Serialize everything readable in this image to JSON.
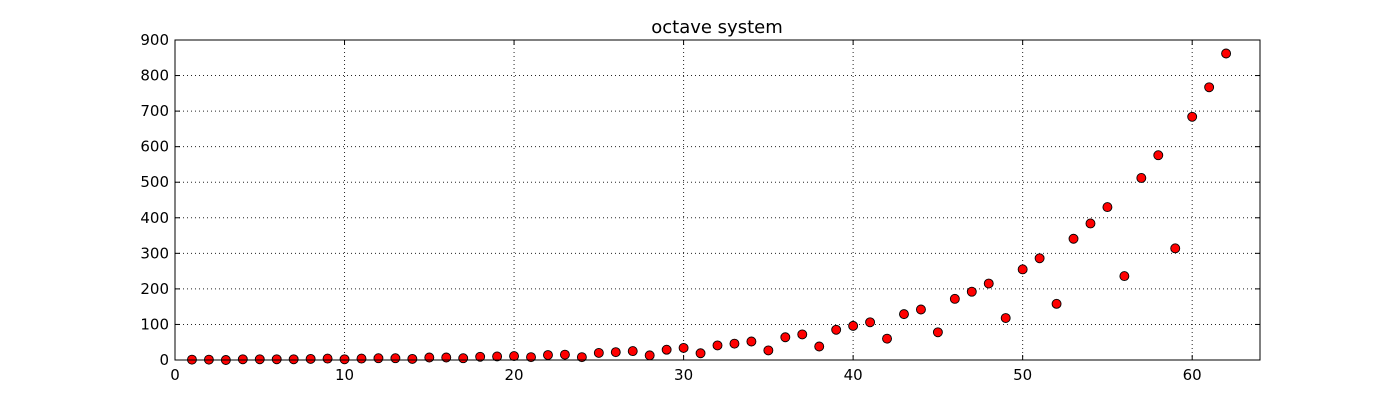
{
  "chart_data": {
    "type": "scatter",
    "title": "octave system",
    "xlabel": "",
    "ylabel": "",
    "xlim": [
      0,
      64
    ],
    "ylim": [
      0,
      900
    ],
    "xticks": [
      0,
      10,
      20,
      30,
      40,
      50,
      60
    ],
    "yticks": [
      0,
      100,
      200,
      300,
      400,
      500,
      600,
      700,
      800,
      900
    ],
    "grid": true,
    "marker_color": "#ff0000",
    "series": [
      {
        "x": [
          1,
          2,
          3,
          4,
          5,
          6,
          7,
          8,
          9,
          10,
          11,
          12,
          13,
          14,
          15,
          16,
          17,
          18,
          19,
          20,
          21,
          22,
          23,
          24,
          25,
          26,
          27,
          28,
          29,
          30,
          31,
          32,
          33,
          34,
          35,
          36,
          37,
          38,
          39,
          40,
          41,
          42,
          43,
          44,
          45,
          46,
          47,
          48,
          49,
          50,
          51,
          52,
          53,
          54,
          55,
          56,
          57,
          58,
          59,
          60,
          61,
          62
        ],
        "y": [
          1,
          1,
          0,
          2,
          2,
          2,
          2,
          3,
          4,
          2,
          4,
          5,
          5,
          3,
          7,
          7,
          5,
          9,
          10,
          11,
          8,
          14,
          15,
          8,
          20,
          22,
          25,
          13,
          29,
          34,
          19,
          41,
          46,
          52,
          27,
          64,
          72,
          38,
          85,
          96,
          106,
          60,
          129,
          142,
          78,
          172,
          192,
          215,
          118,
          255,
          286,
          158,
          341,
          384,
          430,
          236,
          512,
          576,
          314,
          684,
          767,
          862
        ]
      }
    ]
  }
}
